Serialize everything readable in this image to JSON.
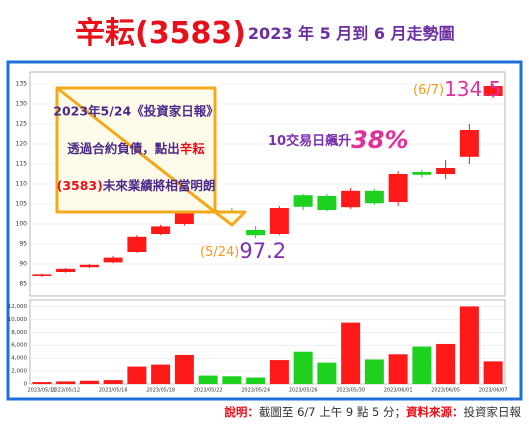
{
  "chart_data": {
    "type": "candlestick",
    "title": "辛耘(3583)",
    "subtitle": "2023 年 5 月到 6 月走勢圖",
    "categories": [
      "2023/05/11",
      "2023/05/12",
      null,
      "2023/05/16",
      null,
      "2023/05/18",
      null,
      "2023/05/22",
      null,
      "2023/05/24",
      null,
      "2023/05/26",
      null,
      "2023/05/30",
      null,
      "2023/06/01",
      null,
      "2023/06/05",
      null,
      "2023/06/07"
    ],
    "open": [
      87.0,
      88.0,
      89.2,
      90.4,
      93.0,
      97.5,
      100.0,
      103.5,
      103.2,
      98.5,
      97.5,
      107.2,
      107.0,
      104.2,
      108.3,
      105.5,
      113.0,
      112.5,
      116.8,
      132.0
    ],
    "high": [
      87.6,
      89.0,
      90.0,
      92.0,
      97.2,
      99.8,
      104.0,
      104.5,
      104.0,
      99.5,
      104.5,
      107.5,
      107.5,
      109.0,
      108.8,
      113.2,
      113.5,
      116.0,
      125.0,
      135.0
    ],
    "low": [
      86.8,
      87.8,
      89.0,
      90.2,
      92.8,
      97.2,
      99.6,
      102.5,
      101.0,
      96.5,
      97.2,
      103.5,
      103.2,
      103.8,
      104.8,
      104.5,
      111.6,
      111.2,
      115.0,
      131.5
    ],
    "close": [
      87.4,
      88.8,
      89.8,
      91.6,
      96.8,
      99.4,
      103.5,
      102.8,
      101.5,
      97.2,
      104.0,
      104.3,
      103.5,
      108.3,
      105.2,
      112.5,
      112.3,
      114.0,
      123.5,
      134.5
    ],
    "volume": [
      300,
      400,
      500,
      600,
      2700,
      3000,
      4500,
      1300,
      1200,
      1000,
      3700,
      5000,
      3300,
      9500,
      3800,
      4600,
      5800,
      6200,
      12000,
      3500
    ],
    "up_color": "#ff1a1a",
    "down_color": "#1fd11f",
    "ylim": [
      82,
      138
    ],
    "yticks": [
      85,
      90,
      95,
      100,
      105,
      110,
      115,
      120,
      125,
      130,
      135
    ],
    "volume_ylim": [
      0,
      13000
    ],
    "volume_yticks": [
      0,
      {
        "value": 2000,
        "label": "2,000"
      },
      {
        "value": 4000,
        "label": "4,000"
      },
      {
        "value": 6000,
        "label": "6,000"
      },
      {
        "value": 8000,
        "label": "8,000"
      },
      {
        "value": 10000,
        "label": "10,000"
      },
      {
        "value": 12000,
        "label": "12,000"
      }
    ],
    "callout": {
      "line1": "2023年5/24《投資家日報》",
      "line2": [
        "透過合約負債，點出",
        "辛耘"
      ],
      "line3": [
        "(3583)",
        "未來業績將相當明朗"
      ]
    },
    "gain_note": {
      "text": "10交易日飆升",
      "value": "38%"
    },
    "start_note": {
      "date": "(5/24)",
      "value": "97.2"
    },
    "end_note": {
      "date": "(6/7)",
      "value": "134.5"
    }
  },
  "footer": {
    "label1": "說明：",
    "text1": "截圖至 6/7 上午 9 點 5 分；",
    "label2": "資料來源：",
    "text2": "投資家日報"
  }
}
